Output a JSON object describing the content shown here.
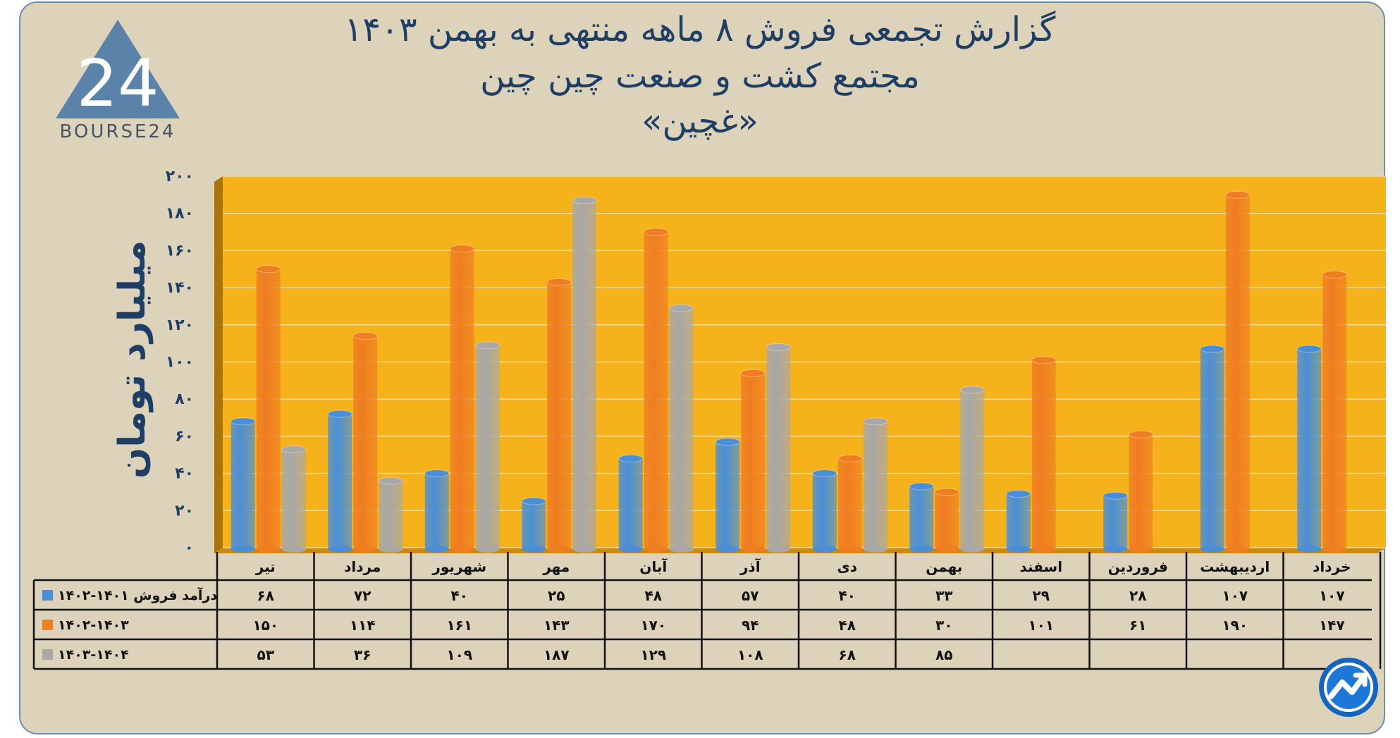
{
  "titles": {
    "line1": "گزارش تجمعی فروش ۸ ماهه منتهی به بهمن ۱۴۰۳",
    "line2": "مجتمع کشت و صنعت چین چین",
    "line3": "«غچین»"
  },
  "logo": {
    "text": "BOURSE24",
    "mark": "24",
    "icon": "triangle-24-logo-icon"
  },
  "badge": {
    "icon": "trend-arrow-badge-icon"
  },
  "colors": {
    "background": "#ddd3bb",
    "plot_area": "#f6b21a",
    "series": [
      "#4a8fd6",
      "#ef7d22",
      "#a8a8a8"
    ],
    "title_text": "#1f3e66"
  },
  "chart_data": {
    "type": "bar",
    "ylabel": "میلیارد تومان",
    "ylim": [
      0,
      200
    ],
    "yticks": [
      "۰",
      "۲۰",
      "۴۰",
      "۶۰",
      "۸۰",
      "۱۰۰",
      "۱۲۰",
      "۱۴۰",
      "۱۶۰",
      "۱۸۰",
      "۲۰۰"
    ],
    "categories": [
      "تیر",
      "مرداد",
      "شهریور",
      "مهر",
      "آبان",
      "آذر",
      "دی",
      "بهمن",
      "اسفند",
      "فروردین",
      "اردیبهشت",
      "خرداد"
    ],
    "series": [
      {
        "name": "درآمد فروش ۱۴۰۱-۱۴۰۲",
        "values": [
          68,
          72,
          40,
          25,
          48,
          57,
          40,
          33,
          29,
          28,
          107,
          107
        ],
        "labels": [
          "۶۸",
          "۷۲",
          "۴۰",
          "۲۵",
          "۴۸",
          "۵۷",
          "۴۰",
          "۳۳",
          "۲۹",
          "۲۸",
          "۱۰۷",
          "۱۰۷"
        ]
      },
      {
        "name": "۱۴۰۲-۱۴۰۳",
        "values": [
          150,
          114,
          161,
          143,
          170,
          94,
          48,
          30,
          101,
          61,
          190,
          147
        ],
        "labels": [
          "۱۵۰",
          "۱۱۴",
          "۱۶۱",
          "۱۴۳",
          "۱۷۰",
          "۹۴",
          "۴۸",
          "۳۰",
          "۱۰۱",
          "۶۱",
          "۱۹۰",
          "۱۴۷"
        ]
      },
      {
        "name": "۱۴۰۳-۱۴۰۴",
        "values": [
          53,
          36,
          109,
          187,
          129,
          108,
          68,
          85,
          null,
          null,
          null,
          null
        ],
        "labels": [
          "۵۳",
          "۳۶",
          "۱۰۹",
          "۱۸۷",
          "۱۲۹",
          "۱۰۸",
          "۶۸",
          "۸۵",
          "",
          "",
          "",
          ""
        ]
      }
    ],
    "legend": "data-table-left",
    "grid": true
  }
}
